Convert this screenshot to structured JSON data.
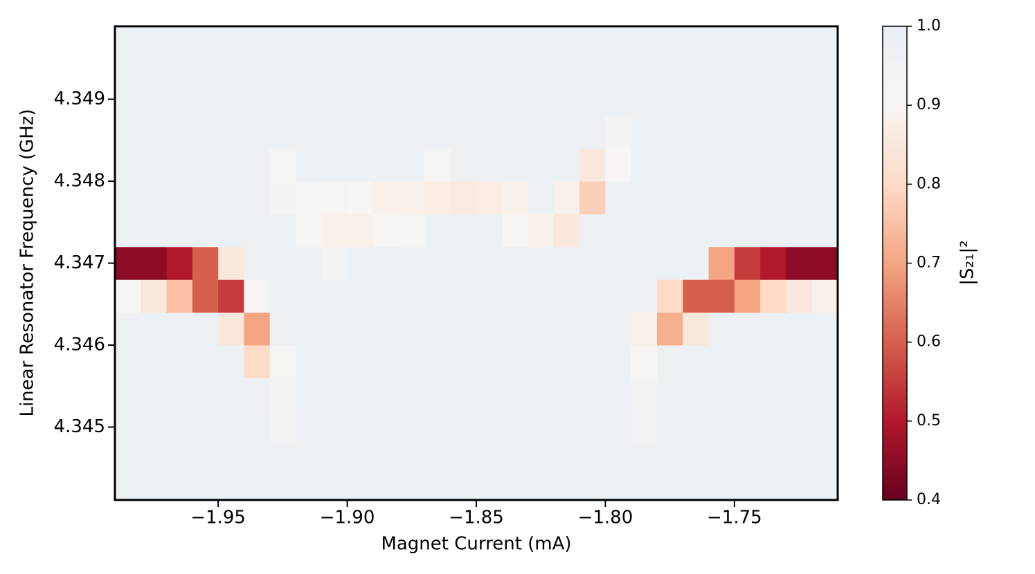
{
  "chart_data": {
    "type": "heatmap",
    "xlabel": "Magnet Current (mA)",
    "ylabel": "Linear Resonator Frequency (GHz)",
    "colorbar_label": "|S₂₁|²",
    "x": [
      -1.985,
      -1.975,
      -1.965,
      -1.955,
      -1.945,
      -1.935,
      -1.925,
      -1.915,
      -1.905,
      -1.895,
      -1.885,
      -1.875,
      -1.865,
      -1.855,
      -1.845,
      -1.835,
      -1.825,
      -1.815,
      -1.805,
      -1.795,
      -1.785,
      -1.775,
      -1.765,
      -1.755,
      -1.745,
      -1.735,
      -1.725,
      -1.715
    ],
    "y": [
      4.3442,
      4.3446,
      4.345,
      4.3454,
      4.3458,
      4.3462,
      4.3466,
      4.347,
      4.3474,
      4.3478,
      4.3482,
      4.3486,
      4.349,
      4.3494,
      4.3498
    ],
    "z": [
      [
        0.97,
        0.97,
        0.97,
        0.97,
        0.97,
        0.97,
        0.97,
        0.97,
        0.97,
        0.97,
        0.97,
        0.97,
        0.97,
        0.97,
        0.97,
        0.97,
        0.97,
        0.97,
        0.97,
        0.97,
        0.97,
        0.97,
        0.97,
        0.97,
        0.97,
        0.97,
        0.97,
        0.97
      ],
      [
        0.97,
        0.97,
        0.97,
        0.97,
        0.97,
        0.97,
        0.97,
        0.97,
        0.97,
        0.97,
        0.97,
        0.97,
        0.97,
        0.97,
        0.97,
        0.97,
        0.97,
        0.97,
        0.97,
        0.97,
        0.97,
        0.97,
        0.97,
        0.97,
        0.97,
        0.97,
        0.97,
        0.97
      ],
      [
        0.97,
        0.97,
        0.97,
        0.97,
        0.97,
        0.97,
        0.94,
        0.97,
        0.97,
        0.97,
        0.97,
        0.97,
        0.97,
        0.97,
        0.97,
        0.97,
        0.97,
        0.97,
        0.97,
        0.97,
        0.95,
        0.97,
        0.97,
        0.97,
        0.97,
        0.97,
        0.97,
        0.97
      ],
      [
        0.97,
        0.97,
        0.97,
        0.97,
        0.97,
        0.97,
        0.93,
        0.97,
        0.97,
        0.97,
        0.97,
        0.97,
        0.97,
        0.97,
        0.97,
        0.97,
        0.97,
        0.97,
        0.97,
        0.97,
        0.94,
        0.97,
        0.97,
        0.97,
        0.97,
        0.97,
        0.97,
        0.97
      ],
      [
        0.97,
        0.97,
        0.97,
        0.97,
        0.97,
        0.8,
        0.92,
        0.97,
        0.97,
        0.97,
        0.97,
        0.97,
        0.97,
        0.97,
        0.97,
        0.97,
        0.97,
        0.97,
        0.97,
        0.97,
        0.9,
        0.97,
        0.97,
        0.97,
        0.97,
        0.97,
        0.97,
        0.97
      ],
      [
        0.97,
        0.97,
        0.97,
        0.97,
        0.85,
        0.7,
        0.97,
        0.97,
        0.97,
        0.97,
        0.97,
        0.97,
        0.97,
        0.97,
        0.97,
        0.97,
        0.97,
        0.97,
        0.97,
        0.97,
        0.88,
        0.72,
        0.85,
        0.97,
        0.97,
        0.97,
        0.97,
        0.97
      ],
      [
        0.9,
        0.85,
        0.75,
        0.6,
        0.55,
        0.9,
        0.97,
        0.97,
        0.97,
        0.97,
        0.97,
        0.97,
        0.97,
        0.97,
        0.97,
        0.97,
        0.97,
        0.97,
        0.97,
        0.97,
        0.97,
        0.8,
        0.6,
        0.6,
        0.7,
        0.8,
        0.85,
        0.88
      ],
      [
        0.45,
        0.45,
        0.5,
        0.6,
        0.85,
        0.97,
        0.97,
        0.97,
        0.93,
        0.97,
        0.97,
        0.97,
        0.97,
        0.97,
        0.97,
        0.97,
        0.97,
        0.97,
        0.97,
        0.97,
        0.97,
        0.97,
        0.97,
        0.7,
        0.55,
        0.5,
        0.45,
        0.45
      ],
      [
        0.97,
        0.97,
        0.97,
        0.97,
        0.97,
        0.97,
        0.97,
        0.92,
        0.88,
        0.88,
        0.9,
        0.92,
        0.97,
        0.97,
        0.97,
        0.9,
        0.88,
        0.85,
        0.97,
        0.97,
        0.97,
        0.97,
        0.97,
        0.97,
        0.97,
        0.97,
        0.97,
        0.97
      ],
      [
        0.97,
        0.97,
        0.97,
        0.97,
        0.97,
        0.97,
        0.93,
        0.9,
        0.92,
        0.9,
        0.88,
        0.88,
        0.87,
        0.86,
        0.87,
        0.88,
        0.97,
        0.88,
        0.78,
        0.97,
        0.97,
        0.97,
        0.97,
        0.97,
        0.97,
        0.97,
        0.97,
        0.97
      ],
      [
        0.97,
        0.97,
        0.97,
        0.97,
        0.97,
        0.97,
        0.92,
        0.97,
        0.97,
        0.97,
        0.97,
        0.97,
        0.92,
        0.97,
        0.97,
        0.97,
        0.97,
        0.97,
        0.85,
        0.9,
        0.97,
        0.97,
        0.97,
        0.97,
        0.97,
        0.97,
        0.97,
        0.97
      ],
      [
        0.97,
        0.97,
        0.97,
        0.97,
        0.97,
        0.97,
        0.97,
        0.97,
        0.97,
        0.97,
        0.97,
        0.97,
        0.97,
        0.97,
        0.97,
        0.97,
        0.97,
        0.97,
        0.97,
        0.93,
        0.97,
        0.97,
        0.97,
        0.97,
        0.97,
        0.97,
        0.97,
        0.97
      ],
      [
        0.97,
        0.97,
        0.97,
        0.97,
        0.97,
        0.97,
        0.97,
        0.97,
        0.97,
        0.97,
        0.97,
        0.97,
        0.97,
        0.97,
        0.97,
        0.97,
        0.97,
        0.97,
        0.97,
        0.97,
        0.97,
        0.97,
        0.97,
        0.97,
        0.97,
        0.97,
        0.97,
        0.97
      ],
      [
        0.97,
        0.97,
        0.97,
        0.97,
        0.97,
        0.97,
        0.97,
        0.97,
        0.97,
        0.97,
        0.97,
        0.97,
        0.97,
        0.97,
        0.97,
        0.97,
        0.97,
        0.97,
        0.97,
        0.97,
        0.97,
        0.97,
        0.97,
        0.97,
        0.97,
        0.97,
        0.97,
        0.97
      ],
      [
        0.97,
        0.97,
        0.97,
        0.97,
        0.97,
        0.97,
        0.97,
        0.97,
        0.97,
        0.97,
        0.97,
        0.97,
        0.97,
        0.97,
        0.97,
        0.97,
        0.97,
        0.97,
        0.97,
        0.97,
        0.97,
        0.97,
        0.97,
        0.97,
        0.97,
        0.97,
        0.97,
        0.97
      ]
    ],
    "xlim": [
      -1.99,
      -1.71
    ],
    "ylim": [
      4.34411,
      4.34989
    ],
    "zlim": [
      0.4,
      1.0
    ],
    "xticks": [
      {
        "value": -1.95,
        "label": "−1.95"
      },
      {
        "value": -1.9,
        "label": "−1.90"
      },
      {
        "value": -1.85,
        "label": "−1.85"
      },
      {
        "value": -1.8,
        "label": "−1.80"
      },
      {
        "value": -1.75,
        "label": "−1.75"
      }
    ],
    "yticks": [
      4.345,
      4.346,
      4.347,
      4.348,
      4.349
    ],
    "zticks": [
      {
        "value": 0.4,
        "label": "0.4"
      },
      {
        "value": 0.5,
        "label": "0.5"
      },
      {
        "value": 0.6,
        "label": "0.6"
      },
      {
        "value": 0.7,
        "label": "0.7"
      },
      {
        "value": 0.8,
        "label": "0.8"
      },
      {
        "value": 0.9,
        "label": "0.9"
      },
      {
        "value": 1.0,
        "label": "1.0"
      }
    ],
    "colors": [
      "#67001f",
      "#b2182b",
      "#d6604d",
      "#f4a582",
      "#fddbc7",
      "#f7f5f3",
      "#e9eff4"
    ]
  }
}
